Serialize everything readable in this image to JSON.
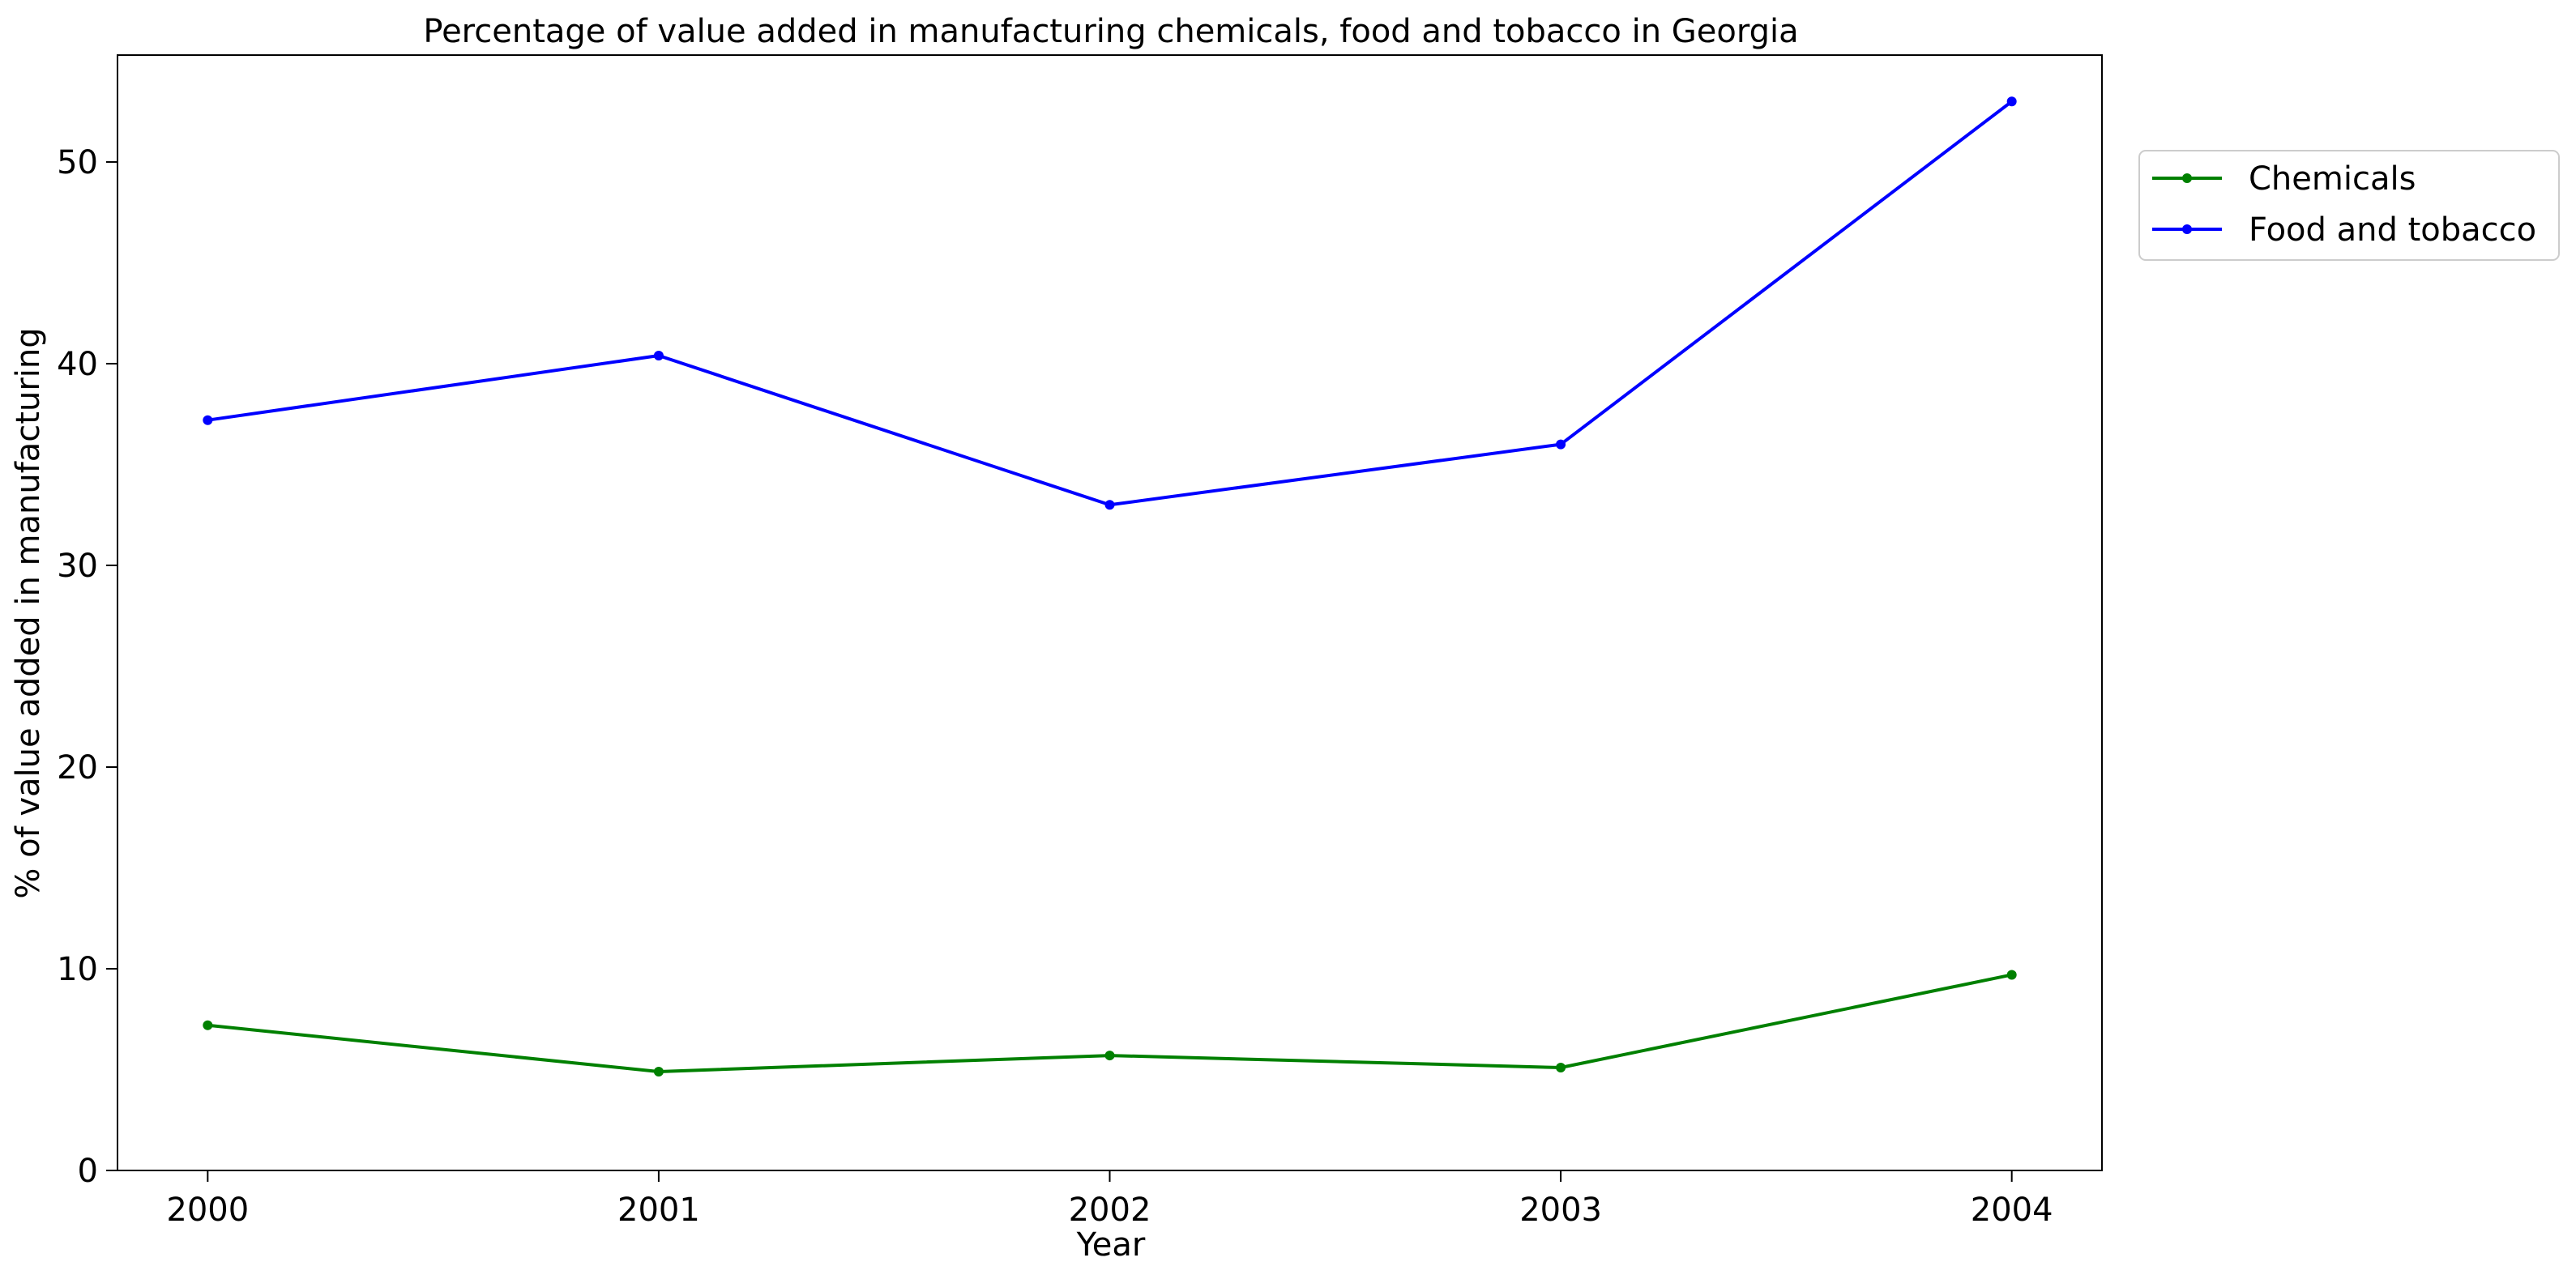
{
  "chart_data": {
    "type": "line",
    "title": "Percentage of value added in manufacturing chemicals, food and tobacco in Georgia",
    "xlabel": "Year",
    "ylabel": "% of value added in manufacturing",
    "x": [
      "2000",
      "2001",
      "2002",
      "2003",
      "2004"
    ],
    "xlim": [
      -0.2,
      4.2
    ],
    "ylim": [
      0,
      55.3
    ],
    "yticks": [
      0,
      10,
      20,
      30,
      40,
      50
    ],
    "grid": false,
    "legend_position": "upper-right-outside",
    "series": [
      {
        "name": "Chemicals",
        "color": "#008000",
        "values": [
          7.2,
          4.9,
          5.7,
          5.1,
          9.7
        ]
      },
      {
        "name": "Food and tobacco",
        "color": "#0000ff",
        "values": [
          37.2,
          40.4,
          33.0,
          36.0,
          53.0
        ]
      }
    ]
  }
}
